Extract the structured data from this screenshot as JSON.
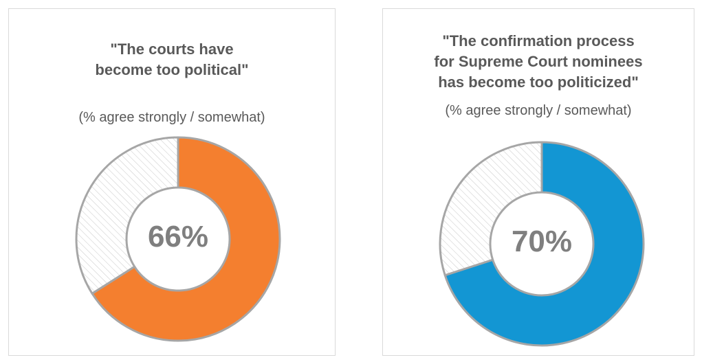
{
  "chart_data": [
    {
      "type": "pie",
      "title_lines": [
        "\"The courts have",
        "become too political\""
      ],
      "subtitle": "(% agree strongly / somewhat)",
      "center_label": "66%",
      "value": 66,
      "colors": {
        "value": "#f47f2f",
        "remainder": "hatched-light-gray"
      }
    },
    {
      "type": "pie",
      "title_lines": [
        "\"The confirmation process",
        "for Supreme Court nominees",
        "has become too politicized\""
      ],
      "subtitle": "(% agree strongly / somewhat)",
      "center_label": "70%",
      "value": 70,
      "colors": {
        "value": "#1396d3",
        "remainder": "hatched-light-gray"
      }
    }
  ]
}
